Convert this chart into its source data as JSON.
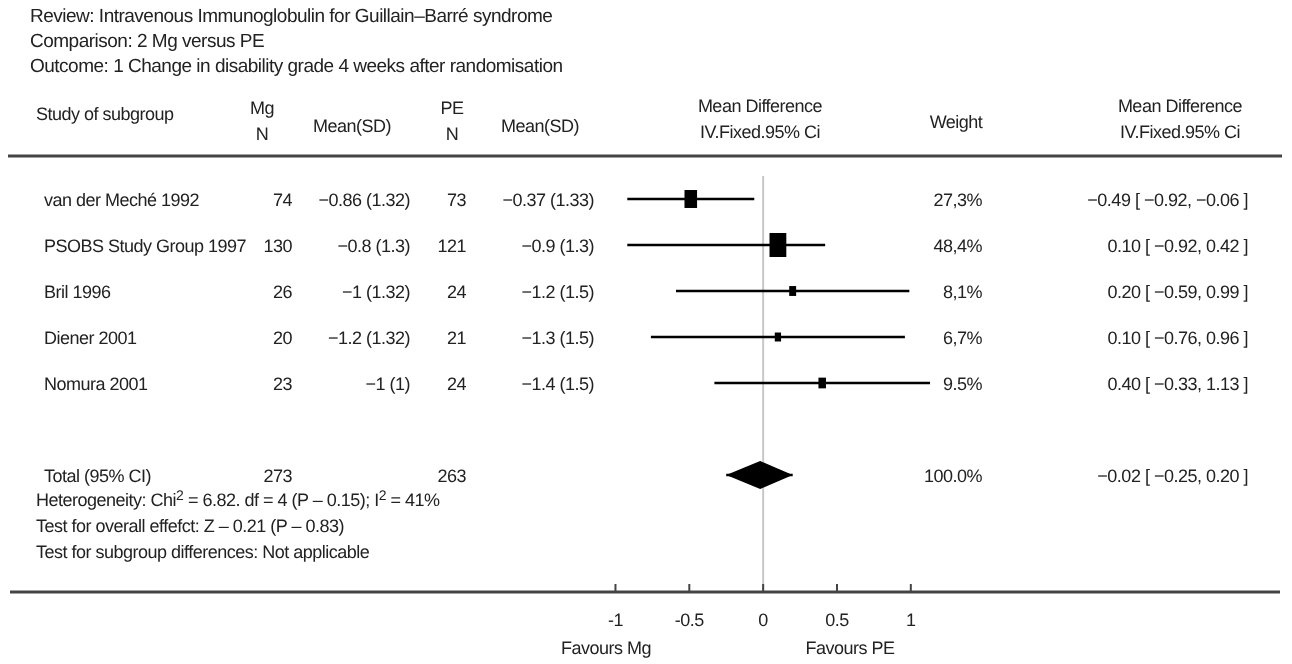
{
  "chart_data": {
    "type": "bubble",
    "orientation": "horizontal",
    "title": "Review: Intravenous Immunoglobulin for Guillain–Barré syndrome",
    "subtitle": "Comparison: 2 Mg versus PE",
    "categories": [
      "van der Meché 1992",
      "PSOBS Study Group 1997",
      "Bril 1996",
      "Diener 2001",
      "Nomura 2001",
      null,
      "Total (95% CI)",
      null,
      null
    ],
    "series": [
      {
        "type": "bubble",
        "marker": "square",
        "color": "#000000",
        "values": [
          -0.49,
          0.1,
          0.2,
          0.1,
          0.4,
          null,
          null,
          null,
          null
        ],
        "errors": [
          [
            -0.92,
            -0.06
          ],
          [
            -0.92,
            0.42
          ],
          [
            -0.59,
            0.99
          ],
          [
            -0.76,
            0.96
          ],
          [
            -0.33,
            1.13
          ],
          null,
          null,
          null,
          null
        ],
        "sizes": [
          0.56,
          1,
          0.17,
          0.14,
          0.2,
          null,
          null,
          null,
          null
        ]
      },
      {
        "type": "scatter",
        "marker": "diamond",
        "color": "#000000",
        "values": [
          null,
          null,
          null,
          null,
          null,
          null,
          -0.02,
          null,
          null
        ],
        "errors": [
          null,
          null,
          null,
          null,
          null,
          null,
          [
            -0.25,
            0.2
          ],
          null,
          null
        ]
      }
    ],
    "xlim": [
      -5.1,
      3.5
    ],
    "xticks": [
      -1,
      -0.5,
      0,
      0.5,
      1
    ],
    "ref_lines": [
      {
        "axis": "x",
        "value": 0,
        "color": "#c8c8c8"
      }
    ],
    "annotations": [
      "Outcome: 1 Change in disability grade 4 weeks after randomisation",
      "Study of subgroup",
      "Mg",
      "N",
      "Mean(SD)",
      "PE",
      "N",
      "Mean(SD)",
      "Mean Difference",
      "IV.Fixed.95% Ci",
      "Weight",
      "Mean Difference",
      "IV.Fixed.95% Ci",
      "Heterogeneity: Chi$^{2}$ = 6.82. df = 4 (P – 0.15); I$^{2}$ = 41%",
      "Test for overall effefct: Z – 0.21 (P – 0.83)",
      "Test for subgroup differences: Not applicable",
      "Favours Mg",
      "Favours PE",
      "74",
      "−0.86 (1.32)",
      "73",
      "−0.37 (1.33)",
      "27,3%",
      "130",
      "−0.8 (1.3)",
      "121",
      "−0.9 (1.3)",
      "48,4%",
      "26",
      "−1 (1.32)",
      "24",
      "−1.2 (1.5)",
      "8,1%",
      "20",
      "−1.2 (1.32)",
      "21",
      "−1.3 (1.5)",
      "6,7%",
      "23",
      "−1 (1)",
      "24",
      "−1.4 (1.5)",
      "9.5%",
      "273",
      "263",
      "100.0%",
      "−0.49 [ −0.92, −0.06 ]",
      "0.10 [ −0.92, 0.42 ]",
      "0.20 [ −0.59, 0.99 ]",
      "0.10 [ −0.76, 0.96 ]",
      "0.40 [ −0.33, 1.13 ]",
      "−0.02 [ −0.25, 0.20 ]"
    ]
  }
}
